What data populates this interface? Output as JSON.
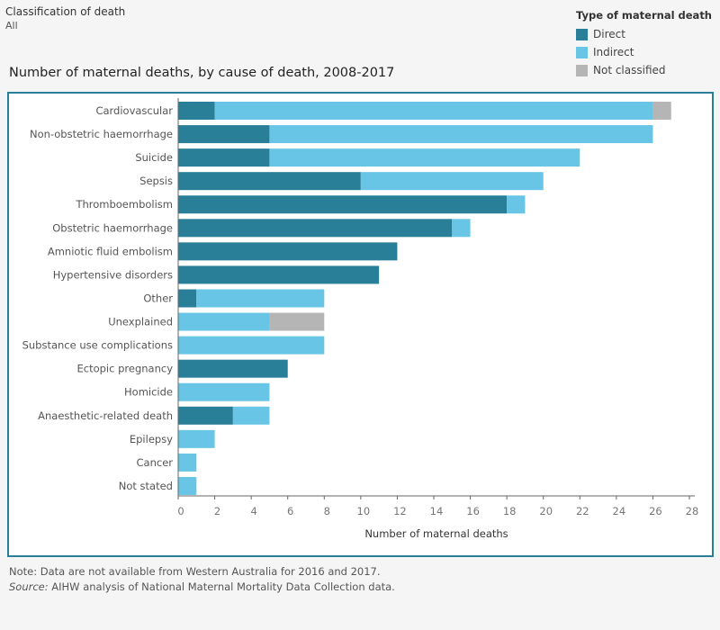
{
  "filter": {
    "label": "Classification of death",
    "value": "All"
  },
  "legend": {
    "title": "Type of maternal death",
    "items": [
      {
        "name": "Direct",
        "color": "#2a7f98"
      },
      {
        "name": "Indirect",
        "color": "#68c5e6"
      },
      {
        "name": "Not classified",
        "color": "#b5b5b5"
      }
    ]
  },
  "notes": {
    "note": "Note: Data are not available from Western Australia for 2016 and 2017.",
    "source_label": "Source:",
    "source_text": " AIHW analysis of National Maternal Mortality Data Collection data."
  },
  "chart_data": {
    "type": "bar",
    "orientation": "horizontal",
    "stacked": true,
    "title": "Number of maternal deaths, by cause of death, 2008-2017",
    "xlabel": "Number of maternal deaths",
    "xlim": [
      0,
      28
    ],
    "xticks": [
      0,
      2,
      4,
      6,
      8,
      10,
      12,
      14,
      16,
      18,
      20,
      22,
      24,
      26,
      28
    ],
    "grid": false,
    "legend_placement": "top-right",
    "categories": [
      "Cardiovascular",
      "Non-obstetric haemorrhage",
      "Suicide",
      "Sepsis",
      "Thromboembolism",
      "Obstetric haemorrhage",
      "Amniotic fluid embolism",
      "Hypertensive disorders",
      "Other",
      "Unexplained",
      "Substance use complications",
      "Ectopic pregnancy",
      "Homicide",
      "Anaesthetic-related death",
      "Epilepsy",
      "Cancer",
      "Not stated"
    ],
    "series": [
      {
        "name": "Direct",
        "color": "#2a7f98",
        "values": [
          2,
          5,
          5,
          10,
          18,
          15,
          12,
          11,
          1,
          0,
          0,
          6,
          0,
          3,
          0,
          0,
          0
        ]
      },
      {
        "name": "Indirect",
        "color": "#68c5e6",
        "values": [
          24,
          21,
          17,
          10,
          1,
          1,
          0,
          0,
          7,
          5,
          8,
          0,
          5,
          2,
          2,
          1,
          1
        ]
      },
      {
        "name": "Not classified",
        "color": "#b5b5b5",
        "values": [
          1,
          0,
          0,
          0,
          0,
          0,
          0,
          0,
          0,
          3,
          0,
          0,
          0,
          0,
          0,
          0,
          0
        ]
      }
    ]
  }
}
